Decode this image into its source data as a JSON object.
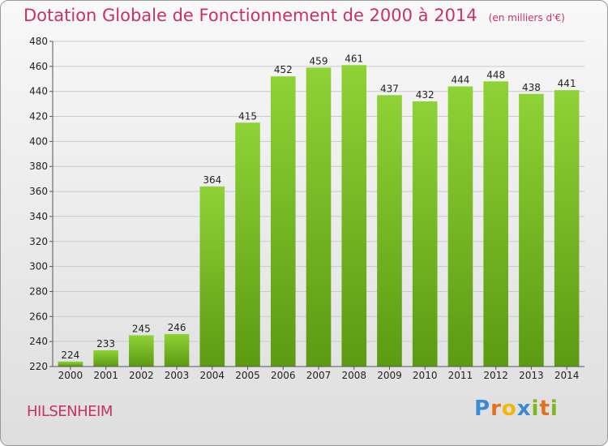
{
  "title": "Dotation Globale de Fonctionnement de 2000 à 2014",
  "subtitle": "(en milliers d'€)",
  "location": "HILSENHEIM",
  "logo": {
    "letters": [
      "P",
      "r",
      "o",
      "x",
      "i",
      "t",
      "i"
    ],
    "colors": [
      "#3a8ad6",
      "#e2711d",
      "#f2b705",
      "#3a8ad6",
      "#7bb81e",
      "#e2711d",
      "#7bb81e"
    ]
  },
  "colors": {
    "bar": "#7cc12a",
    "bar_dark": "#5e9a14",
    "title": "#c8325f"
  },
  "chart_data": {
    "type": "bar",
    "title": "Dotation Globale de Fonctionnement de 2000 à 2014",
    "subtitle": "(en milliers d'€)",
    "categories": [
      "2000",
      "2001",
      "2002",
      "2003",
      "2004",
      "2005",
      "2006",
      "2007",
      "2008",
      "2009",
      "2010",
      "2011",
      "2012",
      "2013",
      "2014"
    ],
    "values": [
      224,
      233,
      245,
      246,
      364,
      415,
      452,
      459,
      461,
      437,
      432,
      444,
      448,
      438,
      441
    ],
    "ylim": [
      220,
      480
    ],
    "yticks": [
      220,
      240,
      260,
      280,
      300,
      320,
      340,
      360,
      380,
      400,
      420,
      440,
      460,
      480
    ],
    "grid": true
  }
}
